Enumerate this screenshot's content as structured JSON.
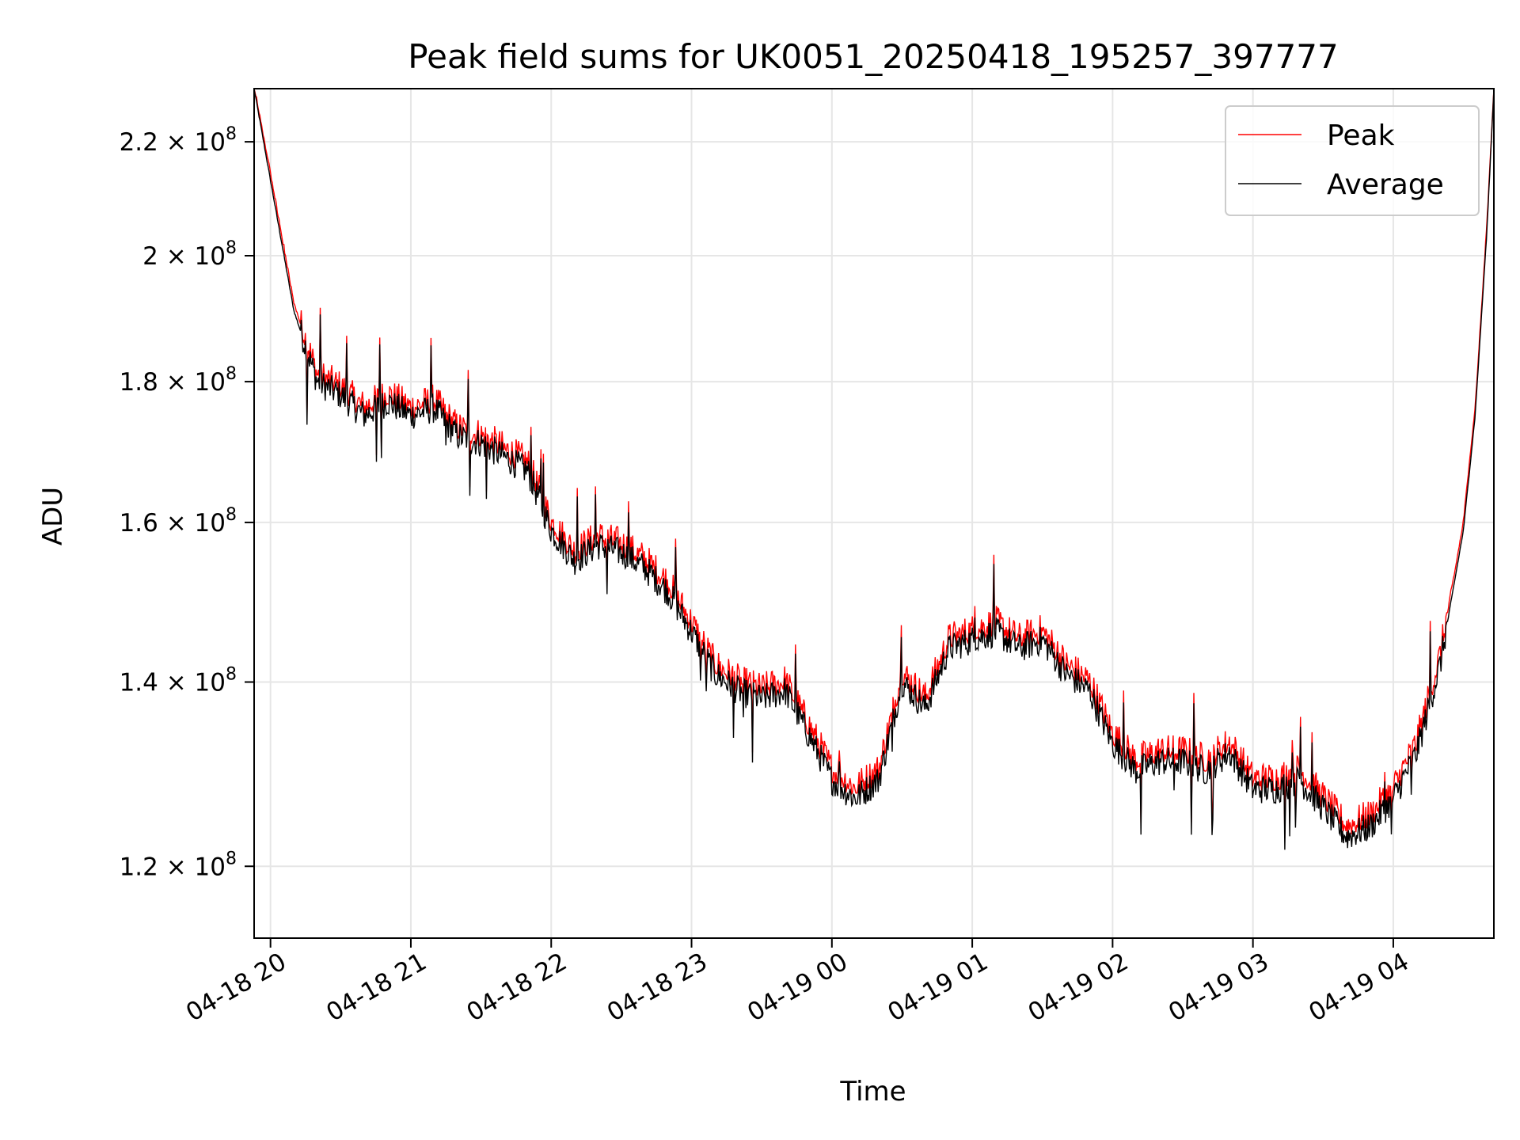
{
  "chart_data": {
    "type": "line",
    "title": "Peak field sums for UK0051_20250418_195257_397777",
    "xlabel": "Time",
    "ylabel": "ADU",
    "x_range": [
      "04-18 19:53",
      "04-19 04:43"
    ],
    "ylim": [
      113000000.0,
      230000000.0
    ],
    "yscale": "log",
    "grid": true,
    "legend_position": "top-right",
    "x_ticks": [
      "04-18 20",
      "04-18 21",
      "04-18 22",
      "04-18 23",
      "04-19 00",
      "04-19 01",
      "04-19 02",
      "04-19 03",
      "04-19 04"
    ],
    "y_ticks": [
      {
        "value": 120000000.0,
        "mantissa": "1.2",
        "exponent": "8"
      },
      {
        "value": 140000000.0,
        "mantissa": "1.4",
        "exponent": "8"
      },
      {
        "value": 160000000.0,
        "mantissa": "1.6",
        "exponent": "8"
      },
      {
        "value": 180000000.0,
        "mantissa": "1.8",
        "exponent": "8"
      },
      {
        "value": 200000000.0,
        "mantissa": "2",
        "exponent": "8"
      },
      {
        "value": 220000000.0,
        "mantissa": "2.2",
        "exponent": "8"
      }
    ],
    "x": [
      "04-18 19:53",
      "04-18 20:00",
      "04-18 20:10",
      "04-18 20:20",
      "04-18 20:30",
      "04-18 20:40",
      "04-18 20:50",
      "04-18 21:00",
      "04-18 21:10",
      "04-18 21:20",
      "04-18 21:30",
      "04-18 21:40",
      "04-18 21:50",
      "04-18 22:00",
      "04-18 22:10",
      "04-18 22:20",
      "04-18 22:30",
      "04-18 22:40",
      "04-18 22:50",
      "04-18 23:00",
      "04-18 23:10",
      "04-18 23:20",
      "04-18 23:30",
      "04-18 23:40",
      "04-18 23:50",
      "04-19 00:00",
      "04-19 00:10",
      "04-19 00:20",
      "04-19 00:30",
      "04-19 00:40",
      "04-19 00:50",
      "04-19 01:00",
      "04-19 01:10",
      "04-19 01:20",
      "04-19 01:30",
      "04-19 01:40",
      "04-19 01:50",
      "04-19 02:00",
      "04-19 02:10",
      "04-19 02:20",
      "04-19 02:30",
      "04-19 02:40",
      "04-19 02:50",
      "04-19 03:00",
      "04-19 03:10",
      "04-19 03:20",
      "04-19 03:30",
      "04-19 03:40",
      "04-19 03:50",
      "04-19 04:00",
      "04-19 04:10",
      "04-19 04:20",
      "04-19 04:30",
      "04-19 04:35",
      "04-19 04:40",
      "04-19 04:43"
    ],
    "series": [
      {
        "name": "Peak",
        "color": "#ff0000",
        "values": [
          230000000.0,
          214000000.0,
          192000000.0,
          181000000.0,
          179000000.0,
          176000000.0,
          178000000.0,
          176000000.0,
          177000000.0,
          173000000.0,
          172000000.0,
          170000000.0,
          168000000.0,
          160000000.0,
          156000000.0,
          158000000.0,
          157000000.0,
          155000000.0,
          152000000.0,
          147000000.0,
          142000000.0,
          140000000.0,
          139000000.0,
          140000000.0,
          135000000.0,
          130000000.0,
          128000000.0,
          130000000.0,
          141000000.0,
          138000000.0,
          145000000.0,
          146000000.0,
          147000000.0,
          145000000.0,
          146000000.0,
          142000000.0,
          140000000.0,
          134000000.0,
          131000000.0,
          132000000.0,
          132000000.0,
          131000000.0,
          133000000.0,
          129000000.0,
          129000000.0,
          130000000.0,
          127000000.0,
          124000000.0,
          125000000.0,
          128000000.0,
          133000000.0,
          143000000.0,
          160000000.0,
          176000000.0,
          205000000.0,
          230000000.0
        ]
      },
      {
        "name": "Average",
        "color": "#000000",
        "values": [
          230000000.0,
          213000000.0,
          191000000.0,
          180000000.0,
          178000000.0,
          175000000.0,
          177000000.0,
          175000000.0,
          176000000.0,
          172000000.0,
          171000000.0,
          169000000.0,
          167000000.0,
          159000000.0,
          155000000.0,
          157000000.0,
          156000000.0,
          154000000.0,
          151000000.0,
          146000000.0,
          141000000.0,
          139000000.0,
          138000000.0,
          139000000.0,
          134000000.0,
          129000000.0,
          127000000.0,
          129000000.0,
          140000000.0,
          137000000.0,
          144000000.0,
          145000000.0,
          146000000.0,
          144000000.0,
          145000000.0,
          141000000.0,
          139000000.0,
          133000000.0,
          130000000.0,
          131000000.0,
          131000000.0,
          130000000.0,
          132000000.0,
          128000000.0,
          128000000.0,
          129000000.0,
          126000000.0,
          123000000.0,
          124000000.0,
          127000000.0,
          132000000.0,
          142000000.0,
          159000000.0,
          175000000.0,
          204000000.0,
          230000000.0
        ]
      }
    ]
  }
}
